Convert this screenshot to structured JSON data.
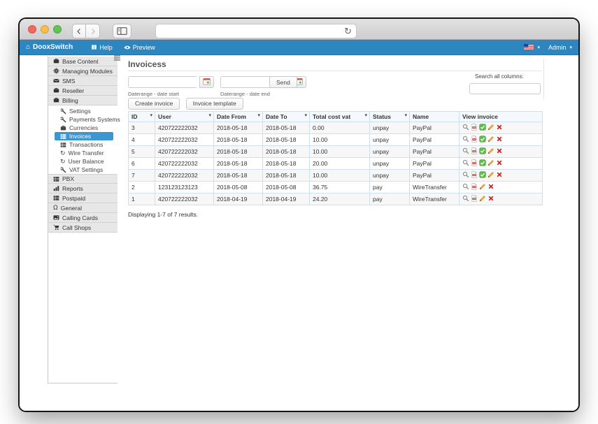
{
  "browser": {
    "url_value": "",
    "back_icon": "chevron-left-icon",
    "forward_icon": "chevron-right-icon",
    "panel_icon": "sidebar-panel-icon",
    "refresh_icon": "refresh-icon",
    "refresh_glyph": "↻"
  },
  "navbar": {
    "brand": "DooxSwitch",
    "brand_icon": "home-icon",
    "home_glyph": "⌂",
    "menu": [
      {
        "label": "Help",
        "icon": "help-icon"
      },
      {
        "label": "Preview",
        "icon": "eye-icon"
      }
    ],
    "language": {
      "icon": "us-flag-icon"
    },
    "user": {
      "label": "Admin"
    },
    "caret_glyph": "▾",
    "accent_color": "#2e86c0"
  },
  "sidebar": {
    "active_color": "#3c96d2",
    "items": [
      {
        "label": "Base Content",
        "icon": "briefcase-icon",
        "type": "main"
      },
      {
        "label": "Managing Modules",
        "icon": "gear-icon",
        "type": "main"
      },
      {
        "label": "SMS",
        "icon": "envelope-icon",
        "type": "main"
      },
      {
        "label": "Reseller",
        "icon": "briefcase-icon",
        "type": "main"
      },
      {
        "label": "Billing",
        "icon": "briefcase-icon",
        "type": "main"
      },
      {
        "label": "Settings",
        "icon": "wrench-icon",
        "type": "sub"
      },
      {
        "label": "Payments Systems",
        "icon": "wrench-icon",
        "type": "sub"
      },
      {
        "label": "Currencies",
        "icon": "briefcase-icon",
        "type": "sub"
      },
      {
        "label": "Invoices",
        "icon": "table-icon",
        "type": "sub",
        "active": true
      },
      {
        "label": "Transactions",
        "icon": "table-icon",
        "type": "sub"
      },
      {
        "label": "Wire Transfer",
        "icon": "refresh-icon",
        "type": "sub"
      },
      {
        "label": "User Balance",
        "icon": "refresh-icon",
        "type": "sub"
      },
      {
        "label": "VAT Settings",
        "icon": "wrench-icon",
        "type": "sub"
      },
      {
        "label": "PBX",
        "icon": "table-icon",
        "type": "main"
      },
      {
        "label": "Reports",
        "icon": "chart-icon",
        "type": "main"
      },
      {
        "label": "Postpaid",
        "icon": "table-icon",
        "type": "main"
      },
      {
        "label": "General",
        "icon": "headphones-icon",
        "type": "main"
      },
      {
        "label": "Calling Cards",
        "icon": "picture-icon",
        "type": "main"
      },
      {
        "label": "Call Shops",
        "icon": "cart-icon",
        "type": "main"
      }
    ]
  },
  "main": {
    "title": "Invoicess",
    "filters": {
      "date_start": {
        "value": "",
        "label": "Daterange - date start",
        "icon": "calendar-icon"
      },
      "date_end": {
        "value": "",
        "label": "Daterange - date end",
        "icon": "calendar-icon"
      },
      "send_button": "Send",
      "search_label": "Search all columns:",
      "search_value": ""
    },
    "actions": {
      "create_button": "Create invoice",
      "template_button": "Invoice template"
    },
    "table": {
      "columns": [
        {
          "label": "ID",
          "sortable": true
        },
        {
          "label": "User",
          "sortable": true
        },
        {
          "label": "Date From",
          "sortable": true
        },
        {
          "label": "Date To",
          "sortable": true
        },
        {
          "label": "Total cost vat",
          "sortable": true
        },
        {
          "label": "Status",
          "sortable": true
        },
        {
          "label": "Name",
          "sortable": false
        },
        {
          "label": "View invoice",
          "sortable": false
        }
      ],
      "rows": [
        {
          "id": "3",
          "user": "420722222032",
          "date_from": "2018-05-18",
          "date_to": "2018-05-18",
          "total_cost_vat": "0.00",
          "status": "unpay",
          "name": "PayPal",
          "actions": [
            "magnifier-icon",
            "pdf-icon",
            "approve-icon",
            "edit-icon",
            "delete-icon"
          ]
        },
        {
          "id": "4",
          "user": "420722222032",
          "date_from": "2018-05-18",
          "date_to": "2018-05-18",
          "total_cost_vat": "10.00",
          "status": "unpay",
          "name": "PayPal",
          "actions": [
            "magnifier-icon",
            "pdf-icon",
            "approve-icon",
            "edit-icon",
            "delete-icon"
          ]
        },
        {
          "id": "5",
          "user": "420722222032",
          "date_from": "2018-05-18",
          "date_to": "2018-05-18",
          "total_cost_vat": "10.00",
          "status": "unpay",
          "name": "PayPal",
          "actions": [
            "magnifier-icon",
            "pdf-icon",
            "approve-icon",
            "edit-icon",
            "delete-icon"
          ]
        },
        {
          "id": "6",
          "user": "420722222032",
          "date_from": "2018-05-18",
          "date_to": "2018-05-18",
          "total_cost_vat": "20.00",
          "status": "unpay",
          "name": "PayPal",
          "actions": [
            "magnifier-icon",
            "pdf-icon",
            "approve-icon",
            "edit-icon",
            "delete-icon"
          ]
        },
        {
          "id": "7",
          "user": "420722222032",
          "date_from": "2018-05-18",
          "date_to": "2018-05-18",
          "total_cost_vat": "10.00",
          "status": "unpay",
          "name": "PayPal",
          "actions": [
            "magnifier-icon",
            "pdf-icon",
            "approve-icon",
            "edit-icon",
            "delete-icon"
          ]
        },
        {
          "id": "2",
          "user": "123123123123",
          "date_from": "2018-05-08",
          "date_to": "2018-05-08",
          "total_cost_vat": "36.75",
          "status": "pay",
          "name": "WireTransfer",
          "actions": [
            "magnifier-icon",
            "pdf-icon",
            "edit-icon",
            "delete-icon"
          ]
        },
        {
          "id": "1",
          "user": "420722222032",
          "date_from": "2018-04-19",
          "date_to": "2018-04-19",
          "total_cost_vat": "24.20",
          "status": "pay",
          "name": "WireTransfer",
          "actions": [
            "magnifier-icon",
            "pdf-icon",
            "edit-icon",
            "delete-icon"
          ]
        }
      ]
    },
    "summary": "Displaying 1-7 of 7 results."
  }
}
